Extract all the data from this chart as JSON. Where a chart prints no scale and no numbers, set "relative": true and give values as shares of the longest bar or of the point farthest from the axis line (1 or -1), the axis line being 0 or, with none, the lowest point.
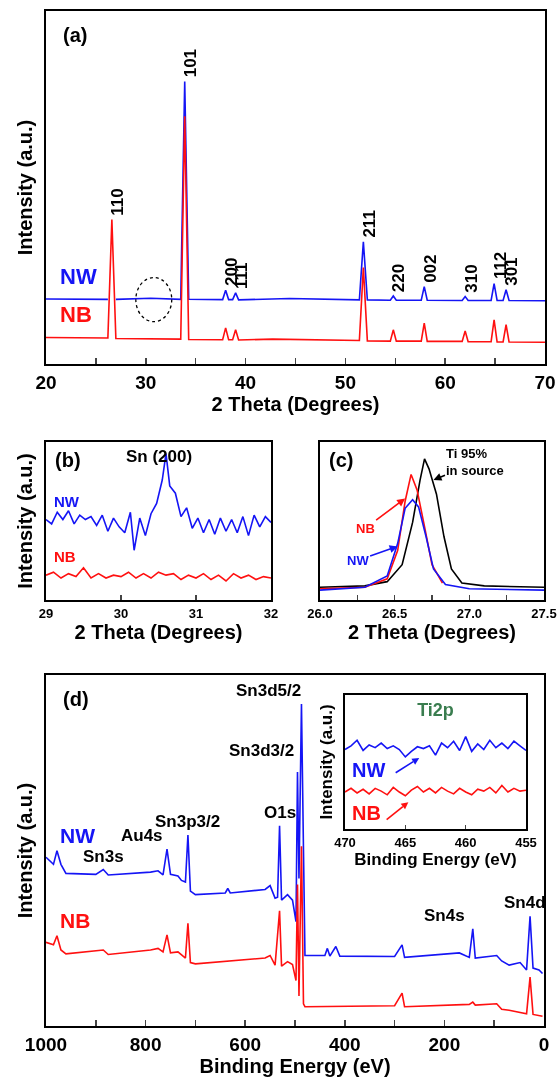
{
  "chart_data": [
    {
      "type": "line",
      "relative": true,
      "xlabel": "2 Theta (Degrees)",
      "ylabel": "Intensity (a.u.)",
      "xlim": [
        20,
        70
      ],
      "xticks": [
        20,
        {
          "value": 25,
          "label": null
        },
        30,
        {
          "value": 35,
          "label": null
        },
        40,
        {
          "value": 45,
          "label": null
        },
        50,
        {
          "value": 55,
          "label": null
        },
        60,
        {
          "value": 65,
          "label": null
        },
        70
      ],
      "annotations": [
        "(a)",
        {
          "text": "110",
          "x": 26.6,
          "y": 0.512
        },
        {
          "text": "101",
          "x": 33.9,
          "y": 1.0
        },
        {
          "text": "200",
          "x": 38.0,
          "y": 0.261
        },
        {
          "text": "111",
          "x": 39.0,
          "y": 0.252
        },
        {
          "text": "211",
          "x": 51.8,
          "y": 0.433
        },
        {
          "text": "220",
          "x": 54.8,
          "y": 0.241
        },
        {
          "text": "002",
          "x": 57.9,
          "y": 0.274
        },
        {
          "text": "310",
          "x": 62.0,
          "y": 0.239
        },
        {
          "text": "112",
          "x": 64.9,
          "y": 0.285
        },
        {
          "text": "301",
          "x": 66.1,
          "y": 0.263
        }
      ],
      "series": [
        {
          "name": "NW",
          "color": "#1515f5",
          "x": [
            20,
            26.2,
            26.6,
            27.0,
            30.5,
            33.5,
            33.9,
            34.3,
            37.7,
            38.0,
            38.3,
            38.7,
            39.0,
            39.3,
            44.4,
            51.4,
            51.8,
            52.2,
            54.5,
            54.8,
            55.1,
            57.6,
            57.9,
            58.2,
            61.7,
            62.0,
            62.3,
            64.6,
            64.9,
            65.2,
            65.8,
            66.1,
            66.4,
            70
          ],
          "values": [
            0.23,
            0.229,
            null,
            0.229,
            0.233,
            0.229,
            1.0,
            0.229,
            0.228,
            0.261,
            0.228,
            0.228,
            0.252,
            0.227,
            0.232,
            0.227,
            0.433,
            0.227,
            0.226,
            0.241,
            0.226,
            0.226,
            0.274,
            0.226,
            0.225,
            0.239,
            0.225,
            0.225,
            0.285,
            0.225,
            0.225,
            0.263,
            0.225,
            0.224
          ]
        },
        {
          "name": "NB",
          "color": "#ff1010",
          "x": [
            20,
            26.2,
            26.6,
            27.0,
            33.5,
            33.9,
            34.3,
            37.7,
            38.0,
            38.3,
            38.7,
            39.0,
            39.3,
            42.7,
            51.4,
            51.8,
            52.2,
            54.5,
            54.8,
            55.1,
            57.6,
            57.9,
            58.2,
            61.7,
            62.0,
            62.3,
            64.6,
            64.9,
            65.2,
            65.8,
            66.1,
            66.4,
            70
          ],
          "values": [
            0.094,
            0.092,
            0.512,
            0.09,
            0.088,
            0.877,
            0.087,
            0.086,
            0.128,
            0.086,
            0.086,
            0.121,
            0.085,
            0.088,
            0.083,
            0.342,
            0.082,
            0.081,
            0.121,
            0.081,
            0.081,
            0.145,
            0.08,
            0.08,
            0.117,
            0.079,
            0.079,
            0.156,
            0.078,
            0.078,
            0.139,
            0.078,
            0.077
          ]
        }
      ]
    },
    {
      "type": "line",
      "relative": true,
      "xlabel": "2 Theta (Degrees)",
      "ylabel": "Intensity (a.u.)",
      "xlim": [
        29,
        32
      ],
      "xticks": [
        29,
        30,
        31,
        32
      ],
      "annotations": [
        "(b)",
        "Sn (200)"
      ],
      "series": [
        {
          "name": "NW",
          "color": "#1515f5",
          "x": [
            29.0,
            29.075,
            29.15,
            29.225,
            29.3,
            29.375,
            29.45,
            29.525,
            29.6,
            29.675,
            29.75,
            29.825,
            29.9,
            29.975,
            30.05,
            30.125,
            30.175,
            30.25,
            30.325,
            30.4,
            30.475,
            30.55,
            30.6,
            30.65,
            30.725,
            30.8,
            30.875,
            30.95,
            31.025,
            31.1,
            31.175,
            31.25,
            31.325,
            31.4,
            31.475,
            31.55,
            31.625,
            31.7,
            31.775,
            31.85,
            31.925,
            32.0
          ],
          "values": [
            0.55,
            0.52,
            0.6,
            0.55,
            0.61,
            0.52,
            0.58,
            0.55,
            0.57,
            0.51,
            0.58,
            0.47,
            0.56,
            0.5,
            0.46,
            0.6,
            0.34,
            0.56,
            0.44,
            0.59,
            0.66,
            0.82,
            1.0,
            0.78,
            0.73,
            0.57,
            0.63,
            0.49,
            0.56,
            0.46,
            0.55,
            0.45,
            0.56,
            0.47,
            0.55,
            0.46,
            0.57,
            0.44,
            0.58,
            0.5,
            0.57,
            0.53
          ]
        },
        {
          "name": "NB",
          "color": "#ff1010",
          "x": [
            29.0,
            29.1,
            29.2,
            29.3,
            29.4,
            29.5,
            29.6,
            29.7,
            29.8,
            29.9,
            30.0,
            30.1,
            30.2,
            30.3,
            30.4,
            30.5,
            30.6,
            30.7,
            30.8,
            30.9,
            31.0,
            31.1,
            31.2,
            31.3,
            31.4,
            31.5,
            31.6,
            31.7,
            31.8,
            31.9,
            32.0
          ],
          "values": [
            0.17,
            0.19,
            0.15,
            0.18,
            0.16,
            0.22,
            0.15,
            0.18,
            0.15,
            0.17,
            0.16,
            0.19,
            0.15,
            0.18,
            0.15,
            0.19,
            0.17,
            0.18,
            0.14,
            0.17,
            0.15,
            0.18,
            0.14,
            0.17,
            0.13,
            0.18,
            0.15,
            0.17,
            0.14,
            0.16,
            0.15
          ]
        }
      ]
    },
    {
      "type": "line",
      "relative": true,
      "xlabel": "2 Theta (Degrees)",
      "xlim": [
        26.0,
        27.5
      ],
      "xticks": [
        {
          "value": 26,
          "label": "26.0"
        },
        {
          "value": 26.25,
          "label": null
        },
        26.5,
        {
          "value": 26.75,
          "label": null
        },
        {
          "value": 27,
          "label": "27.0"
        },
        {
          "value": 27.25,
          "label": null
        },
        27.5
      ],
      "annotations": [
        "(c)",
        {
          "text": "Ti 95%\nin source",
          "x": 26.76,
          "y": 0.85
        },
        {
          "text": "NB",
          "x": 26.57,
          "y": 0.72
        },
        {
          "text": "NW",
          "x": 26.52,
          "y": 0.38
        }
      ],
      "series": [
        {
          "color": "#000000",
          "x": [
            26.0,
            26.3,
            26.45,
            26.55,
            26.62,
            26.67,
            26.7,
            26.73,
            26.78,
            26.83,
            26.88,
            26.95,
            27.1,
            27.5
          ],
          "values": [
            0.09,
            0.1,
            0.13,
            0.25,
            0.55,
            0.85,
            1.0,
            0.93,
            0.75,
            0.45,
            0.22,
            0.12,
            0.1,
            0.09
          ]
        },
        {
          "color": "#ff1010",
          "x": [
            26.0,
            26.3,
            26.45,
            26.52,
            26.57,
            26.61,
            26.65,
            26.7,
            26.75,
            26.82
          ],
          "values": [
            0.08,
            0.09,
            0.15,
            0.35,
            0.7,
            0.89,
            0.78,
            0.52,
            0.25,
            0.12
          ]
        },
        {
          "color": "#1515f5",
          "x": [
            26.0,
            26.3,
            26.45,
            26.52,
            26.57,
            26.62,
            26.66,
            26.71,
            26.76,
            26.84,
            27.0,
            27.5
          ],
          "values": [
            0.07,
            0.09,
            0.17,
            0.4,
            0.65,
            0.71,
            0.66,
            0.45,
            0.22,
            0.11,
            0.08,
            0.07
          ]
        }
      ]
    },
    {
      "type": "line",
      "relative": true,
      "xlabel": "Binding Energy (eV)",
      "ylabel": "Intensity (a.u.)",
      "xlim": [
        1000,
        0
      ],
      "xticks": [
        1000,
        {
          "value": 900,
          "label": null
        },
        800,
        {
          "value": 700,
          "label": null
        },
        600,
        {
          "value": 500,
          "label": null
        },
        400,
        {
          "value": 300,
          "label": null
        },
        200,
        {
          "value": 100,
          "label": null
        },
        0
      ],
      "annotations": [
        "(d)",
        {
          "text": "Sn3d5/2",
          "x": 487,
          "y": 1.0
        },
        {
          "text": "Sn3d3/2",
          "x": 495,
          "y": 0.789
        },
        {
          "text": "O1s",
          "x": 531,
          "y": 0.622
        },
        {
          "text": "Sn3p3/2",
          "x": 715,
          "y": 0.593
        },
        {
          "text": "Au4s",
          "x": 757,
          "y": 0.549
        },
        {
          "text": "Sn3s",
          "x": 885,
          "y": 0.486
        },
        {
          "text": "Sn4s",
          "x": 143,
          "y": 0.302
        },
        {
          "text": "Sn4d",
          "x": 28,
          "y": 0.341
        }
      ],
      "series": [
        {
          "name": "NW",
          "color": "#1515f5",
          "x": [
            1000,
            985,
            978,
            970,
            960,
            900,
            885,
            875,
            790,
            775,
            765,
            757,
            750,
            735,
            728,
            720,
            715,
            710,
            700,
            640,
            635,
            630,
            560,
            550,
            540,
            535,
            531,
            527,
            515,
            505,
            498,
            495,
            492,
            487,
            483,
            480,
            440,
            435,
            430,
            418,
            410,
            300,
            285,
            280,
            170,
            150,
            143,
            138,
            95,
            85,
            70,
            48,
            35,
            28,
            22,
            10,
            3
          ],
          "values": [
            0.524,
            0.502,
            0.544,
            0.502,
            0.474,
            0.471,
            0.486,
            0.469,
            0.478,
            0.482,
            0.469,
            0.549,
            0.471,
            0.466,
            0.452,
            0.447,
            0.593,
            0.419,
            0.408,
            0.413,
            0.427,
            0.413,
            0.424,
            0.436,
            0.397,
            0.4,
            0.622,
            0.391,
            0.408,
            0.391,
            0.324,
            0.789,
            0.458,
            1.0,
            0.547,
            0.219,
            0.219,
            0.241,
            0.217,
            0.247,
            0.217,
            0.216,
            0.252,
            0.213,
            0.227,
            0.213,
            0.302,
            0.211,
            0.219,
            0.202,
            0.189,
            0.197,
            0.174,
            0.341,
            0.18,
            0.174,
            0.163
          ]
        },
        {
          "name": "NB",
          "color": "#ff1010",
          "x": [
            1000,
            985,
            978,
            970,
            960,
            885,
            875,
            790,
            775,
            765,
            757,
            750,
            735,
            720,
            715,
            710,
            700,
            560,
            550,
            540,
            531,
            527,
            515,
            505,
            498,
            495,
            492,
            487,
            483,
            480,
            300,
            285,
            280,
            150,
            143,
            138,
            95,
            85,
            70,
            35,
            28,
            22,
            3
          ],
          "values": [
            0.26,
            0.252,
            0.28,
            0.236,
            0.224,
            0.236,
            0.222,
            0.236,
            0.241,
            0.23,
            0.283,
            0.227,
            0.23,
            0.211,
            0.319,
            0.197,
            0.193,
            0.211,
            0.219,
            0.189,
            0.358,
            0.186,
            0.2,
            0.191,
            0.141,
            0.439,
            0.093,
            0.558,
            0.069,
            0.06,
            0.063,
            0.102,
            0.06,
            0.067,
            0.074,
            0.065,
            0.069,
            0.052,
            0.049,
            0.038,
            0.152,
            0.036,
            0.03
          ]
        }
      ]
    },
    {
      "type": "line",
      "relative": true,
      "title": "Ti2p",
      "xlabel": "Binding Energy (eV)",
      "ylabel": "Intensity (a.u.)",
      "xlim": [
        470,
        455
      ],
      "xticks": [
        470,
        465,
        460,
        455
      ],
      "annotations": [
        "NW",
        "NB"
      ],
      "series": [
        {
          "color": "#1515f5",
          "x": [
            470,
            469.5,
            469,
            468.5,
            468,
            467.5,
            467,
            466.5,
            466,
            465.5,
            465,
            464.5,
            464,
            463.5,
            463,
            462.5,
            462,
            461.5,
            461,
            460.5,
            460,
            459.5,
            459,
            458.5,
            458,
            457.5,
            457,
            456.5,
            456,
            455.5,
            455
          ],
          "values": [
            0.86,
            0.9,
            0.96,
            0.85,
            0.91,
            0.88,
            0.93,
            0.87,
            0.9,
            0.86,
            0.78,
            0.84,
            0.89,
            0.87,
            0.9,
            0.8,
            0.93,
            0.88,
            0.95,
            0.85,
            1.0,
            0.84,
            0.92,
            0.86,
            0.96,
            0.88,
            0.93,
            0.87,
            0.95,
            0.9,
            0.85
          ]
        },
        {
          "color": "#ff1010",
          "x": [
            470,
            469.5,
            469,
            468.5,
            468,
            467.5,
            467,
            466.5,
            466,
            465.5,
            465,
            464.5,
            464,
            463.5,
            463,
            462.5,
            462,
            461.5,
            461,
            460.5,
            460,
            459.5,
            459,
            458.5,
            458,
            457.5,
            457,
            456.5,
            456,
            455.5,
            455
          ],
          "values": [
            0.4,
            0.44,
            0.39,
            0.43,
            0.38,
            0.44,
            0.41,
            0.37,
            0.45,
            0.4,
            0.36,
            0.42,
            0.46,
            0.4,
            0.44,
            0.39,
            0.45,
            0.41,
            0.38,
            0.44,
            0.4,
            0.37,
            0.43,
            0.41,
            0.45,
            0.39,
            0.47,
            0.4,
            0.44,
            0.41,
            0.42
          ]
        }
      ]
    }
  ]
}
